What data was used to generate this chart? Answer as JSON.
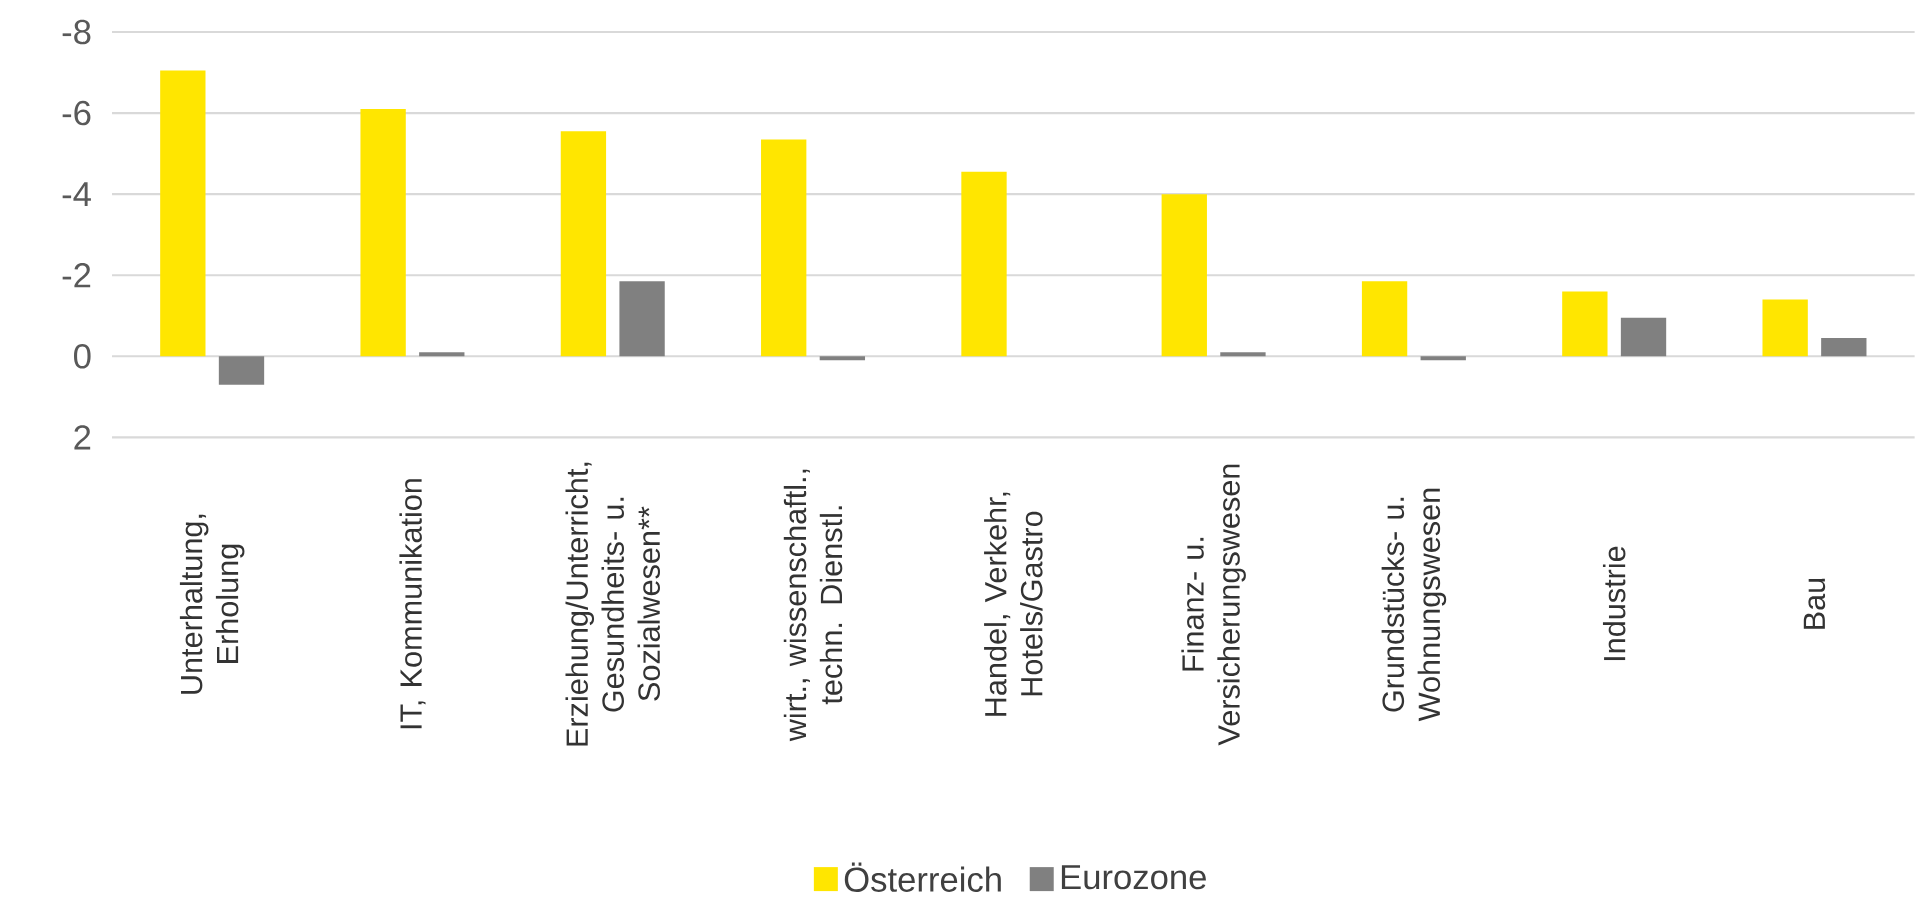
{
  "chart_data": {
    "type": "bar",
    "categories": [
      "Unterhaltung, Erholung",
      "IT, Kommunikation",
      "Erziehung/Unterricht, Gesundheits- u. Sozialwesen**",
      "wirt., wissenschaftl., techn. Dienstl.",
      "Handel, Verkehr, Hotels/Gastro",
      "Finanz- u. Versicherungswesen",
      "Grundstücks- u. Wohnungswesen",
      "Industrie",
      "Bau"
    ],
    "series": [
      {
        "name": "Österreich",
        "color": "#ffe600",
        "values": [
          -7.05,
          -6.1,
          -5.55,
          -5.35,
          -4.55,
          -4.0,
          -1.85,
          -1.6,
          -1.4
        ]
      },
      {
        "name": "Eurozone",
        "color": "#808080",
        "values": [
          0.7,
          -0.1,
          -1.85,
          0.1,
          0.0,
          -0.1,
          0.1,
          -0.95,
          -0.45
        ]
      }
    ],
    "ylim": [
      2,
      -8
    ],
    "yticks": [
      -8,
      -6,
      -4,
      -2,
      0,
      2
    ],
    "grid": "y",
    "legend": "bottom"
  }
}
